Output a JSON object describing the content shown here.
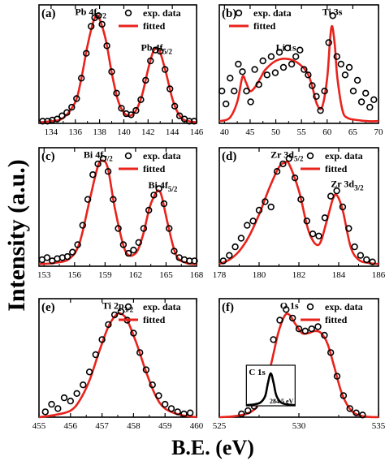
{
  "figure": {
    "ylabel": "Intensity (a.u.)",
    "xlabel": "B.E. (eV)",
    "legend_data": "exp. data",
    "legend_fit": "fitted"
  },
  "colors": {
    "data_marker": "#000000",
    "fit_line": "#e8231c",
    "axes": "#000000"
  },
  "chart_data": [
    {
      "type": "line",
      "panel": "(a)",
      "xlim": [
        133,
        146
      ],
      "ylim": [
        0,
        1.1
      ],
      "xticks": [
        134,
        136,
        138,
        140,
        142,
        144,
        146
      ],
      "legend": "top-right",
      "annotations": [
        {
          "base": "Pb 4f",
          "sub": "7/2",
          "x": 137.8,
          "y": 1.05
        },
        {
          "base": "Pb 4f",
          "sub": "5/2",
          "x": 142.7,
          "y": 0.72
        }
      ],
      "series": [
        {
          "name": "fitted",
          "style": "line",
          "x": [
            133,
            134,
            135,
            136,
            136.5,
            137,
            137.5,
            137.8,
            138,
            138.5,
            139,
            139.5,
            140,
            140.5,
            141,
            141.5,
            142,
            142.4,
            142.7,
            143,
            143.5,
            144,
            144.5,
            145,
            146
          ],
          "y": [
            0.01,
            0.02,
            0.05,
            0.2,
            0.42,
            0.72,
            0.95,
            1.0,
            0.97,
            0.78,
            0.47,
            0.22,
            0.1,
            0.07,
            0.12,
            0.26,
            0.5,
            0.66,
            0.7,
            0.66,
            0.46,
            0.23,
            0.09,
            0.03,
            0.01
          ]
        },
        {
          "name": "exp. data",
          "style": "markers",
          "x": [
            133.3,
            133.7,
            134.1,
            134.5,
            134.9,
            135.3,
            135.7,
            136.1,
            136.5,
            136.9,
            137.3,
            137.6,
            137.9,
            138.2,
            138.6,
            139.0,
            139.4,
            139.8,
            140.2,
            140.6,
            141.0,
            141.4,
            141.8,
            142.2,
            142.6,
            143.0,
            143.4,
            143.8,
            144.2,
            144.6,
            145.0,
            145.4,
            145.8
          ],
          "y": [
            0.02,
            0.02,
            0.03,
            0.04,
            0.07,
            0.1,
            0.15,
            0.23,
            0.42,
            0.65,
            0.9,
            0.98,
            1.0,
            0.92,
            0.72,
            0.48,
            0.28,
            0.14,
            0.09,
            0.08,
            0.12,
            0.22,
            0.4,
            0.58,
            0.68,
            0.67,
            0.5,
            0.32,
            0.16,
            0.07,
            0.04,
            0.02,
            0.02
          ]
        }
      ]
    },
    {
      "type": "line",
      "panel": "(b)",
      "xlim": [
        39,
        70
      ],
      "ylim": [
        0,
        1.1
      ],
      "xticks": [
        40,
        45,
        50,
        55,
        60,
        65,
        70
      ],
      "legend": "top-left",
      "annotations": [
        {
          "base": "Ti 3s",
          "sub": "",
          "x": 61,
          "y": 1.05
        },
        {
          "base": "Li 1s",
          "sub": "",
          "x": 52,
          "y": 0.72
        }
      ],
      "series": [
        {
          "name": "fitted",
          "style": "line",
          "x": [
            39,
            41,
            42.5,
            43.5,
            44.2,
            45,
            46,
            47,
            48,
            50,
            52,
            54,
            56,
            57,
            58,
            59,
            60,
            60.6,
            61,
            61.5,
            62,
            63,
            64,
            66,
            68,
            70
          ],
          "y": [
            0.02,
            0.05,
            0.2,
            0.43,
            0.38,
            0.3,
            0.34,
            0.42,
            0.5,
            0.58,
            0.6,
            0.57,
            0.48,
            0.36,
            0.18,
            0.15,
            0.42,
            0.8,
            0.9,
            0.72,
            0.42,
            0.12,
            0.05,
            0.03,
            0.02,
            0.02
          ]
        },
        {
          "name": "exp. data",
          "style": "markers",
          "x": [
            39.5,
            40.3,
            41.1,
            41.9,
            42.7,
            43.5,
            44.3,
            45.1,
            45.9,
            46.7,
            47.5,
            48.3,
            49.1,
            49.9,
            50.7,
            51.5,
            52.3,
            53.1,
            53.9,
            54.7,
            55.5,
            56.3,
            57.1,
            57.9,
            58.7,
            59.5,
            60.3,
            61.1,
            61.9,
            62.7,
            63.5,
            64.3,
            65.1,
            65.9,
            66.7,
            67.5,
            68.3,
            69.1
          ],
          "y": [
            0.3,
            0.18,
            0.42,
            0.3,
            0.55,
            0.48,
            0.3,
            0.2,
            0.5,
            0.36,
            0.58,
            0.45,
            0.62,
            0.47,
            0.66,
            0.52,
            0.7,
            0.55,
            0.62,
            0.68,
            0.5,
            0.45,
            0.35,
            0.25,
            0.12,
            0.3,
            0.75,
            1.0,
            0.62,
            0.55,
            0.45,
            0.52,
            0.3,
            0.4,
            0.2,
            0.28,
            0.15,
            0.22
          ]
        }
      ]
    },
    {
      "type": "line",
      "panel": "(c)",
      "xlim": [
        152.5,
        168
      ],
      "ylim": [
        0,
        1.1
      ],
      "xticks": [
        153,
        156,
        159,
        162,
        165,
        168
      ],
      "legend": "top-right",
      "annotations": [
        {
          "base": "Bi 4f",
          "sub": "7/2",
          "x": 158.8,
          "y": 1.05
        },
        {
          "base": "Bi 4f",
          "sub": "5/2",
          "x": 164.2,
          "y": 0.77
        }
      ],
      "series": [
        {
          "name": "fitted",
          "style": "line",
          "x": [
            152.5,
            154,
            155.5,
            156.5,
            157.5,
            158.3,
            158.8,
            159.3,
            160,
            161,
            162,
            162.7,
            163.4,
            164,
            164.3,
            164.6,
            165.2,
            166,
            167,
            168
          ],
          "y": [
            0.02,
            0.03,
            0.07,
            0.22,
            0.62,
            0.93,
            0.98,
            0.9,
            0.52,
            0.14,
            0.12,
            0.28,
            0.55,
            0.68,
            0.7,
            0.64,
            0.38,
            0.1,
            0.03,
            0.02
          ]
        },
        {
          "name": "exp. data",
          "style": "markers",
          "x": [
            152.8,
            153.3,
            153.8,
            154.3,
            154.8,
            155.3,
            155.8,
            156.3,
            156.8,
            157.3,
            157.8,
            158.3,
            158.8,
            159.3,
            159.8,
            160.3,
            160.8,
            161.3,
            161.8,
            162.3,
            162.8,
            163.3,
            163.8,
            164.3,
            164.8,
            165.3,
            165.8,
            166.3,
            166.8,
            167.3,
            167.8
          ],
          "y": [
            0.06,
            0.08,
            0.05,
            0.07,
            0.08,
            0.09,
            0.13,
            0.2,
            0.38,
            0.62,
            0.85,
            0.95,
            1.0,
            0.88,
            0.62,
            0.35,
            0.2,
            0.12,
            0.15,
            0.22,
            0.35,
            0.52,
            0.66,
            0.72,
            0.58,
            0.35,
            0.14,
            0.08,
            0.06,
            0.05,
            0.05
          ]
        }
      ]
    },
    {
      "type": "line",
      "panel": "(d)",
      "xlim": [
        178,
        186
      ],
      "ylim": [
        0,
        1.1
      ],
      "xticks": [
        178,
        180,
        182,
        184,
        186
      ],
      "legend": "top-right",
      "annotations": [
        {
          "base": "Zr 3d",
          "sub": "5/2",
          "x": 181.4,
          "y": 1.05
        },
        {
          "base": "Zr 3d",
          "sub": "3/2",
          "x": 184.1,
          "y": 0.78
        }
      ],
      "series": [
        {
          "name": "fitted",
          "style": "line",
          "x": [
            178,
            178.5,
            179,
            179.5,
            180,
            180.5,
            181,
            181.3,
            181.5,
            182,
            182.5,
            183,
            183.4,
            183.7,
            183.9,
            184.2,
            184.6,
            185,
            185.5,
            186
          ],
          "y": [
            0.02,
            0.06,
            0.14,
            0.28,
            0.48,
            0.72,
            0.92,
            0.96,
            0.95,
            0.7,
            0.32,
            0.2,
            0.42,
            0.62,
            0.66,
            0.52,
            0.18,
            0.06,
            0.03,
            0.02
          ]
        },
        {
          "name": "exp. data",
          "style": "markers",
          "x": [
            178.2,
            178.5,
            178.8,
            179.1,
            179.4,
            179.7,
            180.0,
            180.3,
            180.6,
            180.9,
            181.2,
            181.5,
            181.8,
            182.1,
            182.4,
            182.7,
            183.0,
            183.3,
            183.6,
            183.9,
            184.2,
            184.5,
            184.8,
            185.1,
            185.4,
            185.7
          ],
          "y": [
            0.05,
            0.1,
            0.18,
            0.26,
            0.38,
            0.42,
            0.52,
            0.6,
            0.55,
            0.88,
            0.95,
            1.0,
            0.82,
            0.62,
            0.42,
            0.3,
            0.28,
            0.45,
            0.65,
            0.7,
            0.55,
            0.35,
            0.18,
            0.1,
            0.06,
            0.04
          ]
        }
      ]
    },
    {
      "type": "line",
      "panel": "(e)",
      "xlim": [
        455,
        460
      ],
      "ylim": [
        0,
        1.1
      ],
      "xticks": [
        455,
        456,
        457,
        458,
        459,
        460
      ],
      "legend": "top-right",
      "annotations": [
        {
          "base": "Ti 2p",
          "sub": "3/2",
          "x": 457.5,
          "y": 1.05
        }
      ],
      "series": [
        {
          "name": "fitted",
          "style": "line",
          "x": [
            455,
            455.5,
            456,
            456.3,
            456.6,
            456.9,
            457.2,
            457.45,
            457.6,
            457.8,
            458.1,
            458.4,
            458.7,
            459,
            459.5,
            460
          ],
          "y": [
            0.0,
            0.02,
            0.06,
            0.16,
            0.34,
            0.6,
            0.84,
            0.95,
            0.96,
            0.9,
            0.68,
            0.42,
            0.2,
            0.08,
            0.02,
            0.0
          ]
        },
        {
          "name": "exp. data",
          "style": "markers",
          "x": [
            455.2,
            455.4,
            455.6,
            455.8,
            456.0,
            456.2,
            456.4,
            456.6,
            456.8,
            457.0,
            457.2,
            457.4,
            457.6,
            457.8,
            458.0,
            458.2,
            458.4,
            458.6,
            458.8,
            459.0,
            459.2,
            459.4,
            459.6,
            459.8
          ],
          "y": [
            0.05,
            0.12,
            0.08,
            0.18,
            0.15,
            0.22,
            0.3,
            0.42,
            0.58,
            0.72,
            0.86,
            0.95,
            0.98,
            0.9,
            0.78,
            0.6,
            0.44,
            0.3,
            0.2,
            0.12,
            0.08,
            0.05,
            0.03,
            0.04
          ]
        }
      ]
    },
    {
      "type": "line",
      "panel": "(f)",
      "xlim": [
        525,
        535
      ],
      "ylim": [
        0,
        1.1
      ],
      "xticks": [
        525,
        530,
        535
      ],
      "legend": "top-right",
      "annotations": [
        {
          "base": "O 1s",
          "sub": "",
          "x": 529.4,
          "y": 1.05
        }
      ],
      "series": [
        {
          "name": "fitted",
          "style": "line",
          "x": [
            525,
            526,
            527,
            527.6,
            528.2,
            528.7,
            529.1,
            529.4,
            529.8,
            530.2,
            530.6,
            531,
            531.4,
            531.8,
            532.2,
            532.7,
            533.3,
            534,
            535
          ],
          "y": [
            0.0,
            0.01,
            0.05,
            0.16,
            0.46,
            0.78,
            0.94,
            0.95,
            0.86,
            0.78,
            0.78,
            0.8,
            0.78,
            0.68,
            0.48,
            0.22,
            0.06,
            0.01,
            0.0
          ]
        },
        {
          "name": "exp. data",
          "style": "markers",
          "x": [
            526.4,
            526.8,
            527.2,
            527.6,
            528.0,
            528.4,
            528.8,
            529.2,
            529.6,
            530.0,
            530.4,
            530.8,
            531.2,
            531.6,
            532.0,
            532.4,
            532.8,
            533.2,
            533.6,
            534.0
          ],
          "y": [
            0.03,
            0.06,
            0.1,
            0.22,
            0.45,
            0.72,
            0.9,
            1.0,
            0.92,
            0.82,
            0.8,
            0.82,
            0.84,
            0.76,
            0.6,
            0.38,
            0.2,
            0.08,
            0.04,
            0.02
          ]
        }
      ],
      "inset": {
        "title": "C 1s",
        "label": "284.5 eV",
        "x": [
          281,
          282,
          283,
          283.7,
          284.1,
          284.5,
          284.9,
          285.3,
          286,
          287,
          288
        ],
        "y": [
          0.02,
          0.04,
          0.1,
          0.3,
          0.7,
          1.0,
          0.72,
          0.32,
          0.1,
          0.04,
          0.02
        ],
        "xlim": [
          281,
          288
        ],
        "ylim": [
          0,
          1.1
        ]
      }
    }
  ]
}
